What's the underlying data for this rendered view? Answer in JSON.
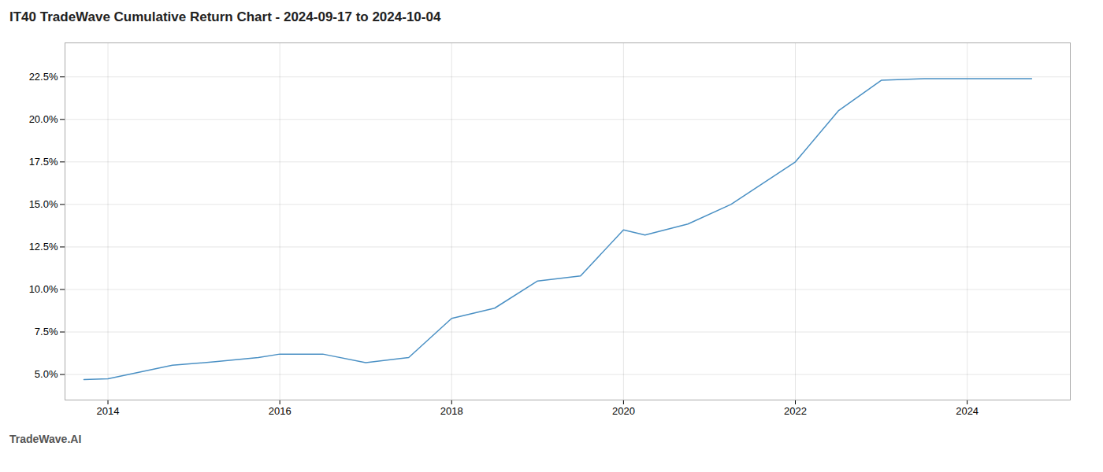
{
  "chart_data": {
    "type": "line",
    "title": "IT40 TradeWave Cumulative Return Chart - 2024-09-17 to 2024-10-04",
    "annotations": [
      "TradeWave.AI"
    ],
    "x": [
      2013.72,
      2014.0,
      2014.75,
      2015.25,
      2015.75,
      2016.0,
      2016.5,
      2017.0,
      2017.5,
      2018.0,
      2018.5,
      2019.0,
      2019.5,
      2020.0,
      2020.25,
      2020.75,
      2021.25,
      2022.0,
      2022.5,
      2023.0,
      2023.5,
      2024.0,
      2024.5,
      2024.75
    ],
    "values": [
      4.7,
      4.75,
      5.55,
      5.75,
      6.0,
      6.2,
      6.2,
      5.7,
      6.0,
      8.3,
      8.9,
      10.5,
      10.8,
      13.5,
      13.2,
      13.85,
      15.0,
      17.5,
      20.5,
      22.3,
      22.4,
      22.4,
      22.4,
      22.4
    ],
    "color": "#4a90c4",
    "xlim": [
      2013.5,
      2025.2
    ],
    "xticks": [
      2014,
      2016,
      2018,
      2020,
      2022,
      2024
    ],
    "ylim": [
      3.5,
      24.5
    ],
    "yticks": [
      {
        "value": 5.0,
        "label": "5.0%"
      },
      {
        "value": 7.5,
        "label": "7.5%"
      },
      {
        "value": 10.0,
        "label": "10.0%"
      },
      {
        "value": 12.5,
        "label": "12.5%"
      },
      {
        "value": 15.0,
        "label": "15.0%"
      },
      {
        "value": 17.5,
        "label": "17.5%"
      },
      {
        "value": 20.0,
        "label": "20.0%"
      },
      {
        "value": 22.5,
        "label": "22.5%"
      }
    ],
    "grid": true
  }
}
